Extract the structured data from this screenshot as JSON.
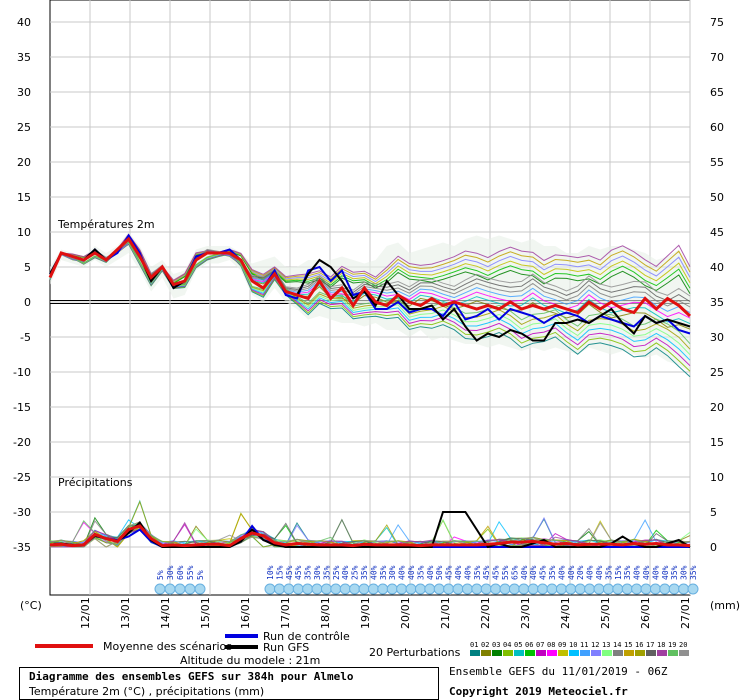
{
  "chart_data": {
    "type": "line",
    "title": "Diagramme des ensembles GEFS sur 384h pour Almelo",
    "subtitle": "Température 2m (°C) , précipitations (mm)",
    "left_axis_unit": "(°C)",
    "right_axis_unit": "(mm)",
    "left_ticks": [
      40,
      35,
      30,
      25,
      20,
      15,
      10,
      5,
      0,
      -5,
      -10,
      -15,
      -20,
      -25,
      -30,
      -35
    ],
    "right_ticks": [
      75,
      70,
      65,
      60,
      55,
      50,
      45,
      40,
      35,
      30,
      25,
      20,
      15,
      10,
      5,
      0
    ],
    "ylim": [
      -35,
      40
    ],
    "x_labels": [
      "12/01",
      "13/01",
      "14/01",
      "15/01",
      "16/01",
      "17/01",
      "18/01",
      "19/01",
      "20/01",
      "21/01",
      "22/01",
      "23/01",
      "24/01",
      "25/01",
      "26/01",
      "27/01"
    ],
    "section_labels": {
      "temperature": "Températures 2m",
      "precip": "Précipitations"
    },
    "mean_temp": [
      3.5,
      7,
      6.5,
      6,
      7,
      6,
      7.5,
      9,
      6.5,
      3.5,
      5,
      2.5,
      3,
      6,
      7,
      7,
      7,
      6,
      3,
      2,
      4,
      1.5,
      1,
      0.5,
      3,
      0.5,
      2,
      -0.5,
      2,
      0,
      -0.5,
      1,
      0,
      -0.5,
      0.5,
      -0.5,
      0,
      -0.5,
      -1,
      -0.5,
      -1,
      0,
      -1,
      -0.5,
      -1,
      -0.5,
      -1,
      -1.5,
      0,
      -1,
      0,
      -1,
      -1.5,
      0.5,
      -1,
      0.5,
      -0.5,
      -2
    ],
    "control_temp": [
      4,
      7,
      6.5,
      6,
      7.5,
      6,
      7,
      9.5,
      7,
      3,
      5,
      2,
      3,
      6.5,
      7,
      7,
      7.5,
      6,
      3,
      2,
      4.5,
      1,
      0.5,
      4.5,
      5,
      3,
      4.5,
      1,
      1.5,
      -1,
      -1,
      0,
      -1.5,
      -1,
      -1,
      -2,
      0,
      -2.5,
      -2,
      -1,
      -2.5,
      -1,
      -1.5,
      -2,
      -3,
      -2,
      -1.5,
      -2,
      -3,
      -2,
      -2.5,
      -3,
      -3.5,
      -2,
      -3,
      -2.5,
      -4,
      -4.5
    ],
    "gfs_temp": [
      4,
      7,
      6.5,
      6,
      7.5,
      6,
      7.5,
      9,
      6.5,
      3,
      5,
      2,
      3,
      6,
      7,
      7,
      7,
      6,
      3,
      2,
      4,
      1.5,
      1,
      4,
      6,
      5,
      3,
      0.5,
      1.5,
      -0.5,
      3,
      1,
      -1,
      -1,
      -0.5,
      -2.5,
      -1,
      -3.5,
      -5.5,
      -4.5,
      -5,
      -4,
      -4.5,
      -5.5,
      -5.5,
      -3,
      -3,
      -2.5,
      -3,
      -2,
      -1,
      -3,
      -4.5,
      -2,
      -3,
      -2.5,
      -3,
      -3.5
    ],
    "spread_hi": [
      5,
      7.5,
      7,
      6.5,
      8,
      7,
      8,
      10,
      8,
      5,
      6,
      4,
      4.5,
      7.5,
      8,
      8,
      8,
      7,
      5.5,
      6,
      6.5,
      5,
      5,
      6,
      6,
      6,
      6.5,
      6,
      5.5,
      6,
      8,
      8.5,
      7,
      7.5,
      8,
      8.5,
      8,
      9,
      9.5,
      9,
      9.5,
      9,
      8.5,
      9,
      8,
      8,
      7,
      7,
      8,
      7.5,
      8,
      8,
      7.5,
      7,
      6,
      6.5,
      7.5,
      5
    ],
    "spread_lo": [
      2.5,
      6,
      5.5,
      5,
      6,
      5,
      6,
      7,
      4.5,
      1.5,
      3.5,
      0.5,
      1,
      4.5,
      5.5,
      5.5,
      6,
      4.5,
      1,
      0,
      2,
      0,
      -1,
      -2.5,
      -2,
      -2.5,
      -3,
      -3,
      -3.5,
      -3,
      -4,
      -4,
      -5,
      -4,
      -5.5,
      -5,
      -5.5,
      -6,
      -6,
      -6.5,
      -6,
      -6.5,
      -7,
      -6.5,
      -7,
      -6.5,
      -7,
      -7.5,
      -6.5,
      -7,
      -7.5,
      -7,
      -7.5,
      -8,
      -7.5,
      -8.5,
      -9,
      -10
    ],
    "mean_precip": [
      0.3,
      0.4,
      0.2,
      0.3,
      1.8,
      1.2,
      0.8,
      2.5,
      3,
      1.2,
      0.2,
      0.3,
      0.2,
      0.3,
      0.4,
      0.4,
      0.2,
      1.2,
      2,
      1.6,
      0.6,
      0.3,
      0.5,
      0.4,
      0.3,
      0.3,
      0.3,
      0.2,
      0.4,
      0.3,
      0.3,
      0.3,
      0.3,
      0.2,
      0.3,
      0.3,
      0.3,
      0.3,
      0.3,
      0.4,
      0.5,
      0.7,
      0.7,
      0.8,
      0.6,
      0.4,
      0.5,
      0.3,
      0.4,
      0.4,
      0.4,
      0.3,
      0.5,
      0.4,
      0.5,
      0.3,
      0.3,
      0.2
    ],
    "control_precip": [
      0.3,
      0.5,
      0.3,
      0.3,
      1.6,
      1.2,
      1,
      1.5,
      2.5,
      0.8,
      0,
      0,
      0,
      0,
      0,
      0,
      0,
      0.8,
      3,
      1,
      0.5,
      0,
      0,
      0,
      0,
      0,
      0,
      0,
      0,
      0,
      0,
      0,
      0,
      0,
      0,
      0,
      0,
      0,
      0,
      0,
      0,
      0,
      0,
      0,
      0,
      0,
      0,
      0,
      0,
      0,
      0,
      0,
      0,
      0,
      0,
      0,
      0,
      0
    ],
    "gfs_precip": [
      0.3,
      0.5,
      0.3,
      0.3,
      1.6,
      1.2,
      0.8,
      2,
      3.5,
      1,
      0,
      0,
      0,
      0,
      0,
      0,
      0,
      0.8,
      2.5,
      1,
      0.3,
      0,
      0,
      0,
      0,
      0,
      0,
      0,
      0,
      0,
      0,
      0,
      0,
      0,
      0,
      5,
      5,
      5,
      2.5,
      0,
      0.5,
      0,
      0,
      0.5,
      1,
      0,
      0,
      0,
      0,
      0,
      0.5,
      1.5,
      0.5,
      0,
      0,
      0.5,
      1,
      0
    ],
    "snow_labels_a": [
      "5%",
      "30%",
      "60%",
      "55%",
      "5%"
    ],
    "snow_labels_b": [
      "10%",
      "15%",
      "45%",
      "45%",
      "35%",
      "30%",
      "35%",
      "25%",
      "40%",
      "25%",
      "35%",
      "40%",
      "35%",
      "30%",
      "40%",
      "40%",
      "35%",
      "40%",
      "50%",
      "45%",
      "40%",
      "40%",
      "35%",
      "45%",
      "45%",
      "55%",
      "65%",
      "40%",
      "40%",
      "45%",
      "35%",
      "40%",
      "40%",
      "20%",
      "40%",
      "40%",
      "35%",
      "15%",
      "35%",
      "40%",
      "40%",
      "40%",
      "40%",
      "35%",
      "30%",
      "35%"
    ],
    "perturbations": {
      "labels": [
        "01",
        "02",
        "03",
        "04",
        "05",
        "06",
        "07",
        "08",
        "09",
        "10",
        "11",
        "12",
        "13",
        "14",
        "15",
        "16",
        "17",
        "18",
        "19",
        "20"
      ],
      "colors": [
        "#008080",
        "#808000",
        "#008000",
        "#80c000",
        "#00c0c0",
        "#00c000",
        "#c000c0",
        "#ff00ff",
        "#c0c000",
        "#00c0ff",
        "#40a0ff",
        "#8080ff",
        "#80ff80",
        "#808080",
        "#c0a000",
        "#a0a000",
        "#606060",
        "#a040a0",
        "#60c060",
        "#909090"
      ]
    },
    "legend": {
      "mean": "Moyenne des scénarios",
      "control": "Run de contrôle",
      "gfs": "Run GFS",
      "perturb": "20 Perturbations",
      "mean_color": "#e01010",
      "control_color": "#0000e0",
      "gfs_color": "#000000"
    },
    "altitude": "Altitude du modele : 21m",
    "run_info": "Ensemble GEFS du 11/01/2019 - 06Z",
    "copyright": "Copyright 2019 Meteociel.fr"
  }
}
